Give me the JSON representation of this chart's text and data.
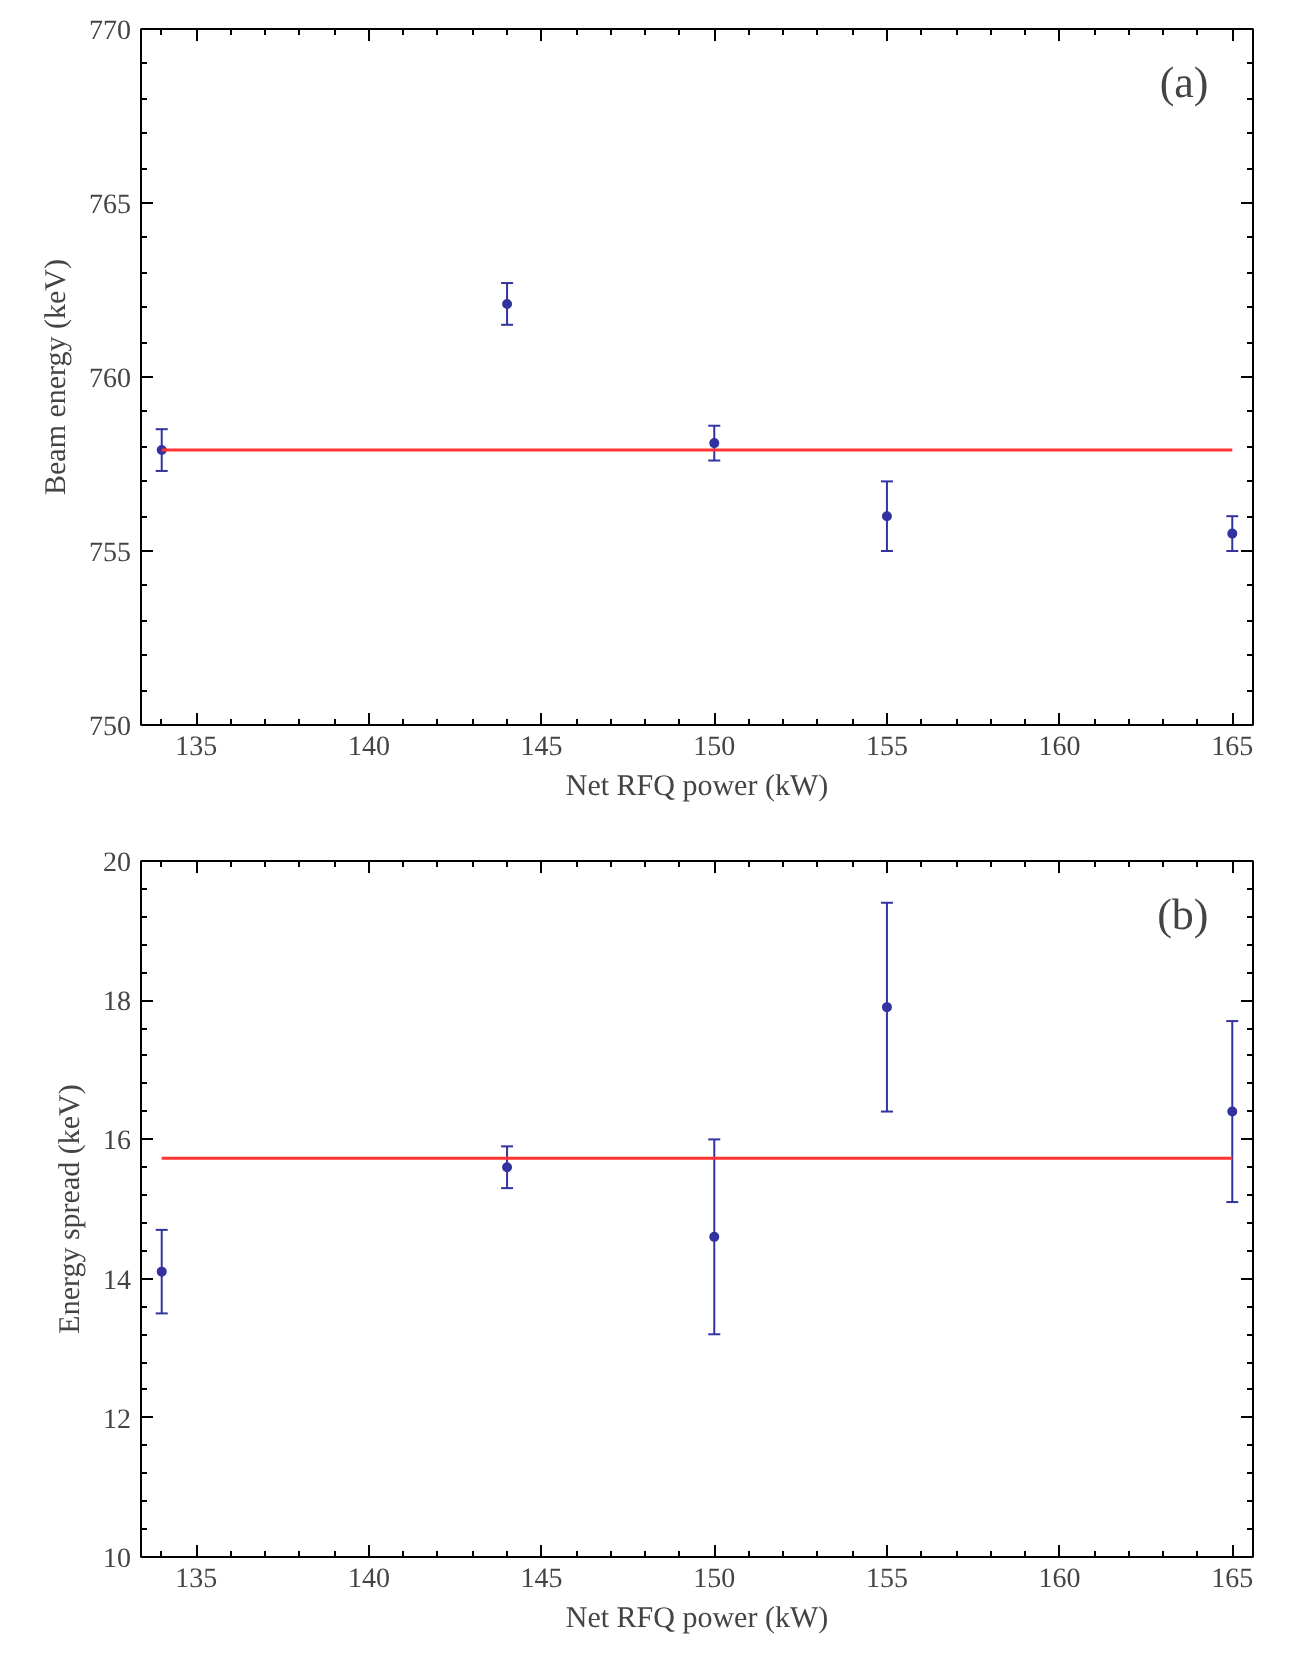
{
  "chart_data": [
    {
      "type": "scatter",
      "xlabel": "Net RFQ power (kW)",
      "ylabel": "Beam energy (keV)",
      "annotations": [
        "(a)"
      ],
      "x": [
        134,
        144,
        150,
        155,
        165
      ],
      "xlim": [
        133.4,
        165.6
      ],
      "xticks": [
        135,
        140,
        145,
        150,
        155,
        160,
        165
      ],
      "ylim": [
        750,
        770
      ],
      "yticks": [
        750,
        755,
        760,
        765,
        770
      ],
      "grid": false,
      "series": [
        {
          "marker": "circle",
          "color": "#3333a0",
          "values": [
            757.9,
            762.1,
            758.1,
            756.0,
            755.5
          ],
          "errors": [
            0.6,
            0.6,
            0.5,
            1.0,
            0.5
          ]
        },
        {
          "type": "line",
          "color": "#ff3333",
          "values": [
            757.9,
            757.9,
            757.9,
            757.9,
            757.9
          ]
        }
      ]
    },
    {
      "type": "scatter",
      "xlabel": "Net RFQ power (kW)",
      "ylabel": "Energy spread (keV)",
      "annotations": [
        "(b)"
      ],
      "x": [
        134,
        144,
        150,
        155,
        165
      ],
      "xlim": [
        133.4,
        165.6
      ],
      "xticks": [
        135,
        140,
        145,
        150,
        155,
        160,
        165
      ],
      "ylim": [
        10,
        20
      ],
      "yticks": [
        10,
        12,
        14,
        16,
        18,
        20
      ],
      "grid": false,
      "series": [
        {
          "marker": "circle",
          "color": "#3333a0",
          "values": [
            14.1,
            15.6,
            14.6,
            17.9,
            16.4
          ],
          "errors": [
            0.6,
            0.3,
            1.4,
            1.5,
            1.3
          ]
        },
        {
          "type": "line",
          "color": "#ff3333",
          "values": [
            15.73,
            15.73,
            15.73,
            15.73,
            15.73
          ]
        }
      ]
    }
  ]
}
